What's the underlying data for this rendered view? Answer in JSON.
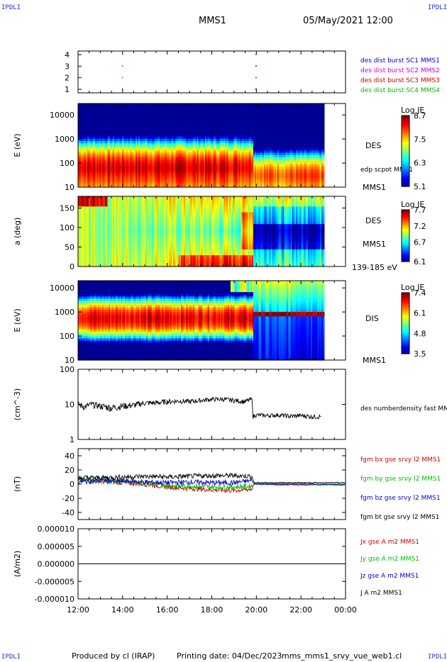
{
  "corner_tags": [
    "IPDLI",
    "IPDLI",
    "IPDLI",
    "IPDLI"
  ],
  "header": {
    "spacecraft": "MMS1",
    "datetime": "05/May/2021 12:00"
  },
  "footer": {
    "produced_by": "Produced by cl (IRAP)",
    "printing_date": "Printing date: 04/Dec/2023",
    "filename": "mms_mms1_srvy_vue_web1.cl"
  },
  "colors": {
    "blue": "#0000cc",
    "magenta": "#cc00cc",
    "red": "#cc0000",
    "green": "#00bb00",
    "black": "#000000"
  },
  "chart_data": [
    {
      "type": "scatter",
      "panel": "burst-availability",
      "yticks": [
        "1",
        "2",
        "3",
        "4"
      ],
      "xlim": [
        "12:00",
        "00:00"
      ],
      "series": [
        {
          "name": "des dist burst SC1 MMS1",
          "color": "#0000cc",
          "y": 1,
          "marks": [
            {
              "t": 13.97,
              "w": 0.02
            },
            {
              "t": 19.95,
              "w": 0.07
            }
          ]
        },
        {
          "name": "des dist burst SC2 MMS2",
          "color": "#cc00cc",
          "y": 2,
          "marks": [
            {
              "t": 13.97,
              "w": 0.02
            },
            {
              "t": 19.95,
              "w": 0.07
            }
          ]
        },
        {
          "name": "des dist burst SC3 MMS3",
          "color": "#cc0000",
          "y": 3,
          "marks": [
            {
              "t": 13.97,
              "w": 0.02
            },
            {
              "t": 19.95,
              "w": 0.07
            }
          ]
        },
        {
          "name": "des dist burst SC4 MMS4",
          "color": "#00bb00",
          "y": 4,
          "marks": [
            {
              "t": 13.97,
              "w": 0.02
            },
            {
              "t": 19.95,
              "w": 0.07
            }
          ]
        }
      ]
    },
    {
      "type": "heatmap",
      "panel": "des-energy-spectrogram",
      "ylabel": "E (eV)",
      "yscale": "log",
      "ylim": [
        10,
        30000
      ],
      "yticks": [
        "10",
        "100",
        "1000",
        "10000"
      ],
      "instrument": "DES",
      "spacecraft": "MMS1",
      "overlay_label": "edp scpot MMS1",
      "colorbar": {
        "title": "Log JE",
        "min": 5.1,
        "max": 8.7,
        "ticks": [
          "8.7",
          "7.5",
          "6.3",
          "5.1"
        ]
      },
      "data_end_time": 23.0,
      "profile": [
        {
          "t0": 12.0,
          "t1": 19.8,
          "peak_energy": 50,
          "width": 0.45,
          "low_e_flux": 8.3,
          "high_e_tail": 6.3
        },
        {
          "t0": 19.8,
          "t1": 23.0,
          "peak_energy": 25,
          "width": 0.4,
          "low_e_flux": 7.7,
          "high_e_tail": 5.1
        }
      ]
    },
    {
      "type": "heatmap",
      "panel": "des-pitch-angle",
      "ylabel": "a (deg)",
      "ylim": [
        0,
        180
      ],
      "yticks": [
        "0",
        "50",
        "100",
        "150"
      ],
      "instrument": "DES",
      "spacecraft": "MMS1",
      "energy_range": "139-185 eV",
      "colorbar": {
        "title": "Log JE",
        "min": 6.1,
        "max": 7.7,
        "ticks": [
          "7.7",
          "7.2",
          "6.7",
          "6.1"
        ]
      },
      "data_end_time": 23.0
    },
    {
      "type": "heatmap",
      "panel": "dis-energy-spectrogram",
      "ylabel": "E (eV)",
      "yscale": "log",
      "ylim": [
        10,
        20000
      ],
      "yticks": [
        "10",
        "100",
        "1000",
        "10000"
      ],
      "instrument": "DIS",
      "spacecraft": "MMS1",
      "colorbar": {
        "title": "Log JE",
        "min": 3.5,
        "max": 7.4,
        "ticks": [
          "7.4",
          "6.1",
          "4.8",
          "3.5"
        ]
      },
      "data_end_time": 23.0,
      "profile": [
        {
          "t0": 12.0,
          "t1": 19.8,
          "peak_energy": 500,
          "width": 0.5
        },
        {
          "t0": 19.8,
          "t1": 23.0,
          "peak_energy": 700,
          "width": 0.08
        }
      ]
    },
    {
      "type": "line",
      "panel": "des-density",
      "ylabel": "(cm^-3)",
      "yscale": "log",
      "ylim": [
        1,
        100
      ],
      "yticks": [
        "1",
        "10",
        "100"
      ],
      "series": [
        {
          "name": "des numberdensity fast MMS1",
          "color": "#000000",
          "x": [
            12.0,
            12.3,
            12.6,
            13.0,
            13.5,
            14.0,
            14.5,
            15.0,
            15.5,
            16.0,
            16.5,
            17.0,
            17.5,
            18.0,
            18.5,
            19.0,
            19.5,
            19.8,
            19.85,
            20.0,
            20.5,
            21.0,
            21.5,
            22.0,
            22.5,
            22.9
          ],
          "y": [
            10.0,
            8.5,
            10.0,
            9.0,
            8.0,
            9.0,
            9.5,
            11.0,
            11.0,
            12.0,
            12.5,
            12.0,
            13.0,
            14.0,
            14.0,
            13.0,
            12.0,
            14.0,
            4.5,
            5.0,
            4.8,
            5.0,
            4.6,
            4.8,
            4.5,
            4.5
          ]
        }
      ]
    },
    {
      "type": "line",
      "panel": "fgm-field",
      "ylabel": "(nT)",
      "ylim": [
        -50,
        50
      ],
      "yticks": [
        "-40",
        "-20",
        "0",
        "20",
        "40"
      ],
      "series": [
        {
          "name": "fgm bx gse srvy l2 MMS1",
          "color": "#cc0000",
          "x": [
            12,
            13,
            14,
            15,
            16,
            17,
            18,
            19,
            19.8,
            19.9,
            21,
            22,
            23,
            24
          ],
          "y": [
            5,
            4,
            2,
            0,
            -4,
            -6,
            -8,
            -9,
            -7,
            1,
            0,
            0,
            0,
            0
          ]
        },
        {
          "name": "fgm by gse srvy l2 MMS1",
          "color": "#00bb00",
          "x": [
            12,
            13,
            14,
            15,
            16,
            17,
            18,
            19,
            19.8,
            19.9,
            21,
            22,
            23,
            24
          ],
          "y": [
            6,
            5,
            4,
            2,
            -2,
            -3,
            -4,
            -4,
            -3,
            1,
            1,
            1,
            0,
            0
          ]
        },
        {
          "name": "fgm bz gse srvy l2 MMS1",
          "color": "#0000cc",
          "x": [
            12,
            13,
            14,
            15,
            16,
            17,
            18,
            19,
            19.8,
            19.9,
            21,
            22,
            23,
            24
          ],
          "y": [
            3,
            5,
            4,
            3,
            2,
            3,
            2,
            2,
            5,
            0,
            -1,
            -1,
            -1,
            -1
          ]
        },
        {
          "name": "fgm bt gse srvy l2 MMS1",
          "color": "#000000",
          "x": [
            12,
            13,
            14,
            15,
            16,
            17,
            18,
            19,
            19.8,
            19.9,
            21,
            22,
            23,
            24
          ],
          "y": [
            9,
            9,
            10,
            11,
            10,
            11,
            12,
            12,
            11,
            2,
            2,
            2,
            2,
            2
          ]
        }
      ]
    },
    {
      "type": "line",
      "panel": "current-density",
      "ylabel": "(A/m2)",
      "ylim": [
        -1e-05,
        1e-05
      ],
      "yticks": [
        "-0.000010",
        "-0.000005",
        "0.000000",
        "0.000005",
        "0.000010"
      ],
      "series": [
        {
          "name": "Jx gse A m2 MMS1",
          "color": "#cc0000",
          "x": [
            12,
            24
          ],
          "y": [
            0,
            0
          ]
        },
        {
          "name": "Jy gse A m2 MMS1",
          "color": "#00bb00",
          "x": [
            12,
            24
          ],
          "y": [
            0,
            0
          ]
        },
        {
          "name": "Jz gse A m2 MMS1",
          "color": "#0000cc",
          "x": [
            12,
            24
          ],
          "y": [
            0,
            0
          ]
        },
        {
          "name": "J A m2 MMS1",
          "color": "#000000",
          "x": [
            12,
            24
          ],
          "y": [
            0,
            0
          ]
        }
      ]
    }
  ],
  "x_axis": {
    "ticks": [
      "12:00",
      "14:00",
      "16:00",
      "18:00",
      "20:00",
      "22:00",
      "00:00"
    ],
    "tmin": 12,
    "tmax": 24
  }
}
